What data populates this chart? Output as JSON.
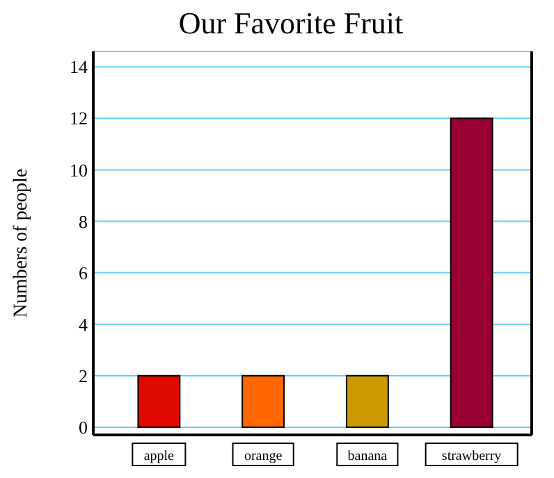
{
  "chart_data": {
    "type": "bar",
    "title": "Our Favorite Fruit",
    "ylabel": "Numbers of people",
    "categories": [
      "apple",
      "orange",
      "banana",
      "strawberry"
    ],
    "values": [
      2,
      2,
      2,
      12
    ],
    "colors": [
      "#e00a00",
      "#ff6600",
      "#cc9900",
      "#990033"
    ],
    "ylim": [
      -0.3,
      14.6
    ],
    "yticks": [
      0,
      2,
      4,
      6,
      8,
      10,
      12,
      14
    ],
    "grid": true
  }
}
